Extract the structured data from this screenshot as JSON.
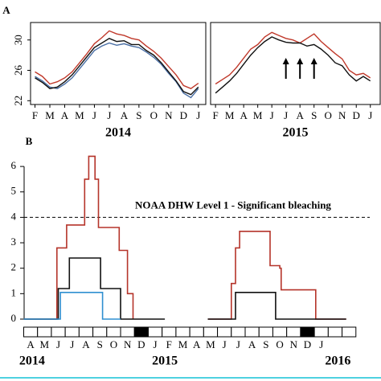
{
  "chart_data": [
    {
      "type": "line",
      "panel": "A",
      "title": "2014",
      "x": [
        0,
        0.5,
        1,
        1.5,
        2,
        2.5,
        3,
        3.5,
        4,
        4.5,
        5,
        5.5,
        6,
        6.5,
        7,
        7.5,
        8,
        8.5,
        9,
        9.5,
        10,
        10.5,
        11
      ],
      "series": [
        {
          "color": "#c0392b",
          "values": [
            25.8,
            25.2,
            24.2,
            24.5,
            25.0,
            25.8,
            27.0,
            28.2,
            29.5,
            30.3,
            31.2,
            30.8,
            30.6,
            30.2,
            30.0,
            29.2,
            28.5,
            27.6,
            26.5,
            25.4,
            24.0,
            23.6,
            24.3
          ]
        },
        {
          "color": "#4a6fa5",
          "values": [
            25.2,
            24.6,
            23.8,
            23.6,
            24.2,
            25.0,
            26.2,
            27.4,
            28.6,
            29.2,
            29.6,
            29.3,
            29.5,
            29.2,
            29.0,
            28.4,
            27.7,
            26.8,
            25.6,
            24.5,
            23.0,
            22.4,
            23.6
          ]
        },
        {
          "color": "#111111",
          "values": [
            25.0,
            24.4,
            23.6,
            23.8,
            24.5,
            25.4,
            26.6,
            27.8,
            29.0,
            29.6,
            30.2,
            29.8,
            29.9,
            29.4,
            29.4,
            28.6,
            28.0,
            27.0,
            25.8,
            24.6,
            23.2,
            22.8,
            23.8
          ]
        }
      ],
      "xlim": [
        -0.3,
        11.5
      ],
      "ylim": [
        21.5,
        32.3
      ],
      "yticks": [
        22,
        26,
        30
      ],
      "xticks": [
        {
          "value": 0,
          "label": "F"
        },
        {
          "value": 1,
          "label": "M"
        },
        {
          "value": 2,
          "label": "A"
        },
        {
          "value": 3,
          "label": "M"
        },
        {
          "value": 4,
          "label": "J"
        },
        {
          "value": 5,
          "label": "J"
        },
        {
          "value": 6,
          "label": "A"
        },
        {
          "value": 7,
          "label": "S"
        },
        {
          "value": 8,
          "label": "O"
        },
        {
          "value": 9,
          "label": "N"
        },
        {
          "value": 10,
          "label": "D"
        },
        {
          "value": 11,
          "label": "J"
        }
      ]
    },
    {
      "type": "line",
      "title": "2015",
      "x": [
        0,
        0.5,
        1,
        1.5,
        2,
        2.5,
        3,
        3.5,
        4,
        4.5,
        5,
        5.5,
        6,
        6.5,
        7,
        7.5,
        8,
        8.5,
        9,
        9.5,
        10,
        10.5,
        11
      ],
      "series": [
        {
          "color": "#c0392b",
          "values": [
            24.2,
            24.8,
            25.4,
            26.4,
            27.6,
            28.8,
            29.4,
            30.4,
            31.0,
            30.6,
            30.2,
            30.0,
            29.6,
            30.2,
            30.8,
            29.8,
            29.0,
            28.2,
            27.5,
            26.0,
            25.4,
            25.6,
            25.0
          ]
        },
        {
          "color": "#111111",
          "values": [
            23.0,
            23.8,
            24.6,
            25.6,
            26.8,
            28.0,
            29.0,
            29.8,
            30.4,
            30.0,
            29.7,
            29.6,
            29.6,
            29.2,
            29.4,
            28.8,
            28.0,
            27.0,
            26.6,
            25.4,
            24.6,
            25.2,
            24.6
          ]
        }
      ],
      "arrows_at": [
        5,
        6,
        7
      ],
      "xlim": [
        -0.35,
        11.7
      ],
      "ylim": [
        21.5,
        32.3
      ],
      "xticks": [
        {
          "value": 0,
          "label": "F"
        },
        {
          "value": 1,
          "label": "M"
        },
        {
          "value": 2,
          "label": "A"
        },
        {
          "value": 3,
          "label": "M"
        },
        {
          "value": 4,
          "label": "J"
        },
        {
          "value": 5,
          "label": "J"
        },
        {
          "value": 6,
          "label": "A"
        },
        {
          "value": 7,
          "label": "S"
        },
        {
          "value": 8,
          "label": "O"
        },
        {
          "value": 9,
          "label": "N"
        },
        {
          "value": 10,
          "label": "D"
        },
        {
          "value": 11,
          "label": "J"
        }
      ]
    },
    {
      "type": "step",
      "panel": "B",
      "series": [
        {
          "color": "#b5342a",
          "x": [
            -0.5,
            1.9,
            1.9,
            2.6,
            2.6,
            3.9,
            3.9,
            4.2,
            4.2,
            4.65,
            4.65,
            4.9,
            4.9,
            6.4,
            6.4,
            7.0,
            7.0,
            7.4,
            7.4
          ],
          "values": [
            0,
            0,
            2.8,
            2.8,
            3.7,
            3.7,
            5.5,
            5.5,
            6.4,
            6.4,
            5.5,
            5.5,
            3.6,
            3.6,
            2.7,
            2.7,
            1.0,
            1.0,
            0
          ]
        },
        {
          "color": "#111111",
          "x": [
            -0.5,
            2.0,
            2.0,
            2.8,
            2.8,
            5.05,
            5.05,
            6.5,
            6.5,
            9.7
          ],
          "values": [
            0,
            0,
            1.2,
            1.2,
            2.4,
            2.4,
            1.2,
            1.2,
            0,
            0
          ]
        },
        {
          "color": "#2f8fd0",
          "x": [
            -0.5,
            2.15,
            2.15,
            5.2,
            5.2,
            6.5
          ],
          "values": [
            0,
            0,
            1.05,
            1.05,
            0,
            0
          ]
        },
        {
          "color": "#b5342a",
          "x": [
            12.8,
            14.5,
            14.5,
            14.8,
            14.8,
            15.1,
            15.1,
            17.3,
            17.3,
            18.0,
            18.0,
            18.1,
            18.1,
            20.6,
            20.6,
            22.8
          ],
          "values": [
            0,
            0,
            1.4,
            1.4,
            2.8,
            2.8,
            3.45,
            3.45,
            2.1,
            2.1,
            2.0,
            2.0,
            1.15,
            1.15,
            0,
            0
          ]
        },
        {
          "color": "#111111",
          "x": [
            12.8,
            14.8,
            14.8,
            17.7,
            17.7,
            22.8
          ],
          "values": [
            0,
            0,
            1.05,
            1.05,
            0,
            0
          ]
        }
      ],
      "threshold": 4,
      "annotation": "NOAA DHW Level 1 - Significant bleaching",
      "xlim": [
        -0.47,
        24.5
      ],
      "ylim": [
        -0.19,
        6.54
      ],
      "yticks": [
        0,
        1,
        2,
        3,
        4,
        5,
        6
      ],
      "xticks": [
        {
          "value": 0,
          "label": "A"
        },
        {
          "value": 1,
          "label": "M"
        },
        {
          "value": 2,
          "label": "J"
        },
        {
          "value": 3,
          "label": "J"
        },
        {
          "value": 4,
          "label": "A"
        },
        {
          "value": 5,
          "label": "S"
        },
        {
          "value": 6,
          "label": "O"
        },
        {
          "value": 7,
          "label": "N"
        },
        {
          "value": 8,
          "label": "D"
        },
        {
          "value": 9,
          "label": "J"
        },
        {
          "value": 10,
          "label": "F"
        },
        {
          "value": 11,
          "label": "M"
        },
        {
          "value": 12,
          "label": "A"
        },
        {
          "value": 13,
          "label": "M"
        },
        {
          "value": 14,
          "label": "J"
        },
        {
          "value": 15,
          "label": "J"
        },
        {
          "value": 16,
          "label": "A"
        },
        {
          "value": 17,
          "label": "S"
        },
        {
          "value": 18,
          "label": "O"
        },
        {
          "value": 19,
          "label": "N"
        },
        {
          "value": 20,
          "label": "D"
        },
        {
          "value": 21,
          "label": "J"
        }
      ],
      "year_labels": [
        {
          "value": 0.1,
          "label": "2014"
        },
        {
          "value": 9.7,
          "label": "2015"
        },
        {
          "value": 22.2,
          "label": "2016"
        }
      ]
    }
  ]
}
